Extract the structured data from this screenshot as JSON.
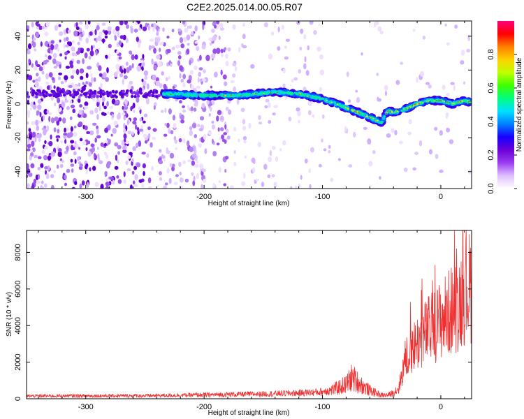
{
  "title": "C2E2.2025.014.00.05.R07",
  "chart_data": [
    {
      "type": "heatmap",
      "xlabel": "Height of straight line (km)",
      "ylabel": "Frequency (Hz)",
      "xlim": [
        -350,
        26
      ],
      "ylim": [
        -50,
        49
      ],
      "xticks": [
        -300,
        -200,
        -100,
        0
      ],
      "yticks": [
        -40,
        -20,
        0,
        20,
        40
      ],
      "colorbar": {
        "label": "Normalized spectral amplitude",
        "range": [
          0,
          1
        ],
        "ticks": [
          "0.0",
          "0.2",
          "0.4",
          "0.6",
          "0.8"
        ],
        "tick_values": [
          0.0,
          0.2,
          0.4,
          0.6,
          0.8
        ],
        "colors": [
          "#ffffff",
          "#e0c0ff",
          "#9a3cf0",
          "#6a00d8",
          "#1800ff",
          "#0080ff",
          "#00e0ff",
          "#00ff80",
          "#40ff00",
          "#c0ff00",
          "#ffd000",
          "#ff8000",
          "#ff0000",
          "#ff0080"
        ]
      },
      "ridge": {
        "x": [
          -235,
          -200,
          -170,
          -140,
          -120,
          -100,
          -85,
          -70,
          -60,
          -50,
          -45,
          -40,
          -30,
          -20,
          -10,
          0,
          10,
          20,
          26
        ],
        "y": [
          6,
          5,
          5,
          7,
          6,
          3,
          -1,
          -5,
          -8,
          -11,
          -4,
          -5,
          -3,
          0,
          2,
          2,
          0,
          2,
          1
        ]
      }
    },
    {
      "type": "line",
      "xlabel": "Height of straight line (km)",
      "ylabel": "SNR (10 * v/v)",
      "xlim": [
        -350,
        26
      ],
      "ylim": [
        0,
        9200
      ],
      "xticks": [
        -300,
        -200,
        -100,
        0
      ],
      "yticks": [
        0,
        2000,
        4000,
        6000,
        8000
      ],
      "color": "#f03030",
      "envelope": {
        "x": [
          -350,
          -250,
          -200,
          -150,
          -120,
          -100,
          -90,
          -80,
          -75,
          -70,
          -65,
          -60,
          -55,
          -50,
          -45,
          -40,
          -35,
          -30,
          -25,
          -20,
          -15,
          -10,
          -5,
          0,
          5,
          10,
          15,
          20,
          26
        ],
        "y": [
          200,
          220,
          280,
          350,
          420,
          500,
          800,
          1200,
          1800,
          1400,
          1000,
          700,
          500,
          300,
          300,
          500,
          1000,
          3000,
          3800,
          4200,
          4800,
          5200,
          5500,
          6000,
          6300,
          6800,
          7200,
          8200,
          8500
        ]
      }
    }
  ]
}
